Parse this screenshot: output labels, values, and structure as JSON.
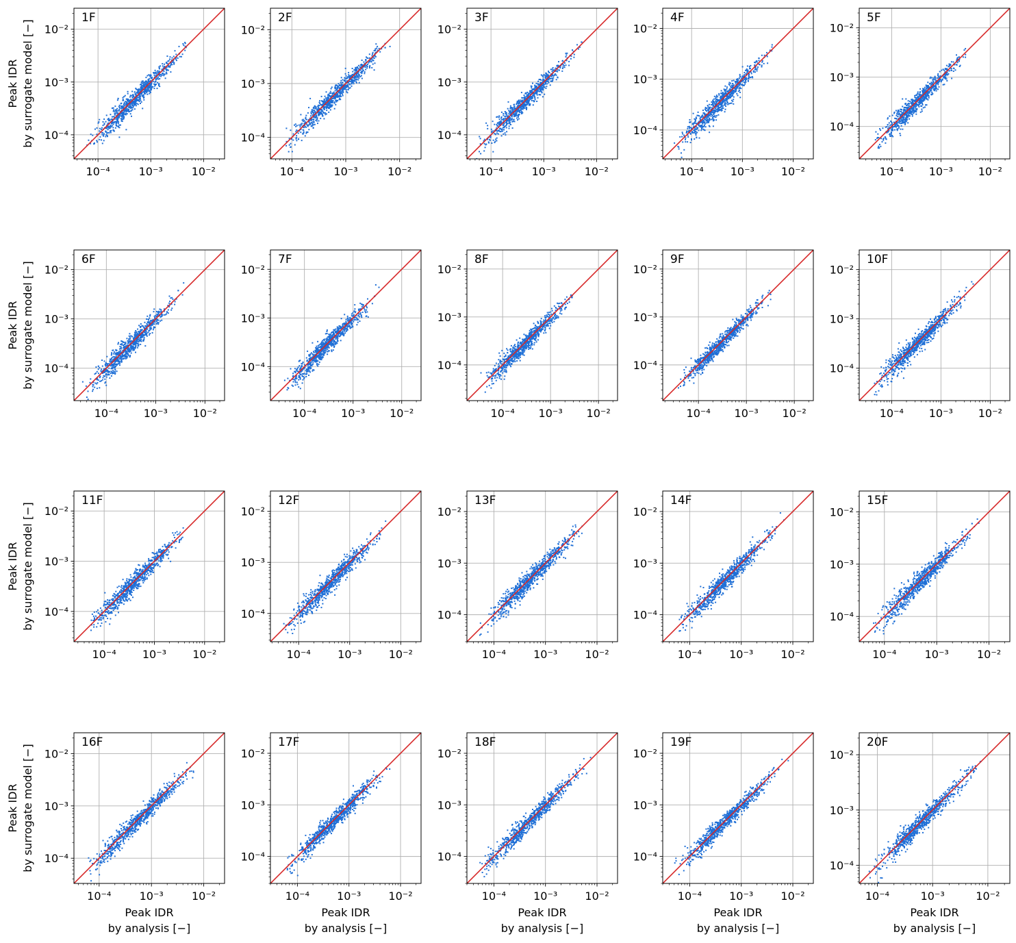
{
  "figure": {
    "ylabel_line1": "Peak IDR",
    "ylabel_line2": "by surrogate model [−]",
    "xlabel_line1": "Peak IDR",
    "xlabel_line2": "by analysis [−]",
    "tick_labels": [
      "10⁻⁴",
      "10⁻³",
      "10⁻²"
    ]
  },
  "colors": {
    "scatter": "#1f6fd6",
    "diagonal": "#d62728",
    "grid": "#b0b0b0"
  },
  "chart_data": [
    {
      "type": "scatter",
      "label": "1F",
      "xscale": "log",
      "yscale": "log",
      "xlim": [
        3.5e-05,
        0.025
      ],
      "ylim": [
        3.5e-05,
        0.025
      ],
      "grid": true,
      "diagonal": "y = x",
      "x_range": [
        5e-05,
        0.0085
      ],
      "scatter_spread": 0.09
    },
    {
      "type": "scatter",
      "label": "2F",
      "xscale": "log",
      "yscale": "log",
      "xlim": [
        4e-05,
        0.025
      ],
      "ylim": [
        4e-05,
        0.025
      ],
      "grid": true,
      "diagonal": "y = x",
      "x_range": [
        6e-05,
        0.0105
      ],
      "scatter_spread": 0.08
    },
    {
      "type": "scatter",
      "label": "3F",
      "xscale": "log",
      "yscale": "log",
      "xlim": [
        3.5e-05,
        0.025
      ],
      "ylim": [
        3.5e-05,
        0.025
      ],
      "grid": true,
      "diagonal": "y = x",
      "x_range": [
        4.5e-05,
        0.0075
      ],
      "scatter_spread": 0.08
    },
    {
      "type": "scatter",
      "label": "4F",
      "xscale": "log",
      "yscale": "log",
      "xlim": [
        2.7e-05,
        0.025
      ],
      "ylim": [
        2.7e-05,
        0.025
      ],
      "grid": true,
      "diagonal": "y = x",
      "x_range": [
        4e-05,
        0.0065
      ],
      "scatter_spread": 0.09
    },
    {
      "type": "scatter",
      "label": "5F",
      "xscale": "log",
      "yscale": "log",
      "xlim": [
        2.2e-05,
        0.025
      ],
      "ylim": [
        2.2e-05,
        0.025
      ],
      "grid": true,
      "diagonal": "y = x",
      "x_range": [
        3.5e-05,
        0.0055
      ],
      "scatter_spread": 0.09
    },
    {
      "type": "scatter",
      "label": "6F",
      "xscale": "log",
      "yscale": "log",
      "xlim": [
        2.2e-05,
        0.025
      ],
      "ylim": [
        2.2e-05,
        0.025
      ],
      "grid": true,
      "diagonal": "y = x",
      "x_range": [
        3e-05,
        0.005
      ],
      "scatter_spread": 0.09
    },
    {
      "type": "scatter",
      "label": "7F",
      "xscale": "log",
      "yscale": "log",
      "xlim": [
        2e-05,
        0.025
      ],
      "ylim": [
        2e-05,
        0.025
      ],
      "grid": true,
      "diagonal": "y = x",
      "x_range": [
        3e-05,
        0.0047
      ],
      "scatter_spread": 0.09
    },
    {
      "type": "scatter",
      "label": "8F",
      "xscale": "log",
      "yscale": "log",
      "xlim": [
        1.8e-05,
        0.025
      ],
      "ylim": [
        1.8e-05,
        0.025
      ],
      "grid": true,
      "diagonal": "y = x",
      "x_range": [
        3e-05,
        0.0045
      ],
      "scatter_spread": 0.09
    },
    {
      "type": "scatter",
      "label": "9F",
      "xscale": "log",
      "yscale": "log",
      "xlim": [
        1.8e-05,
        0.025
      ],
      "ylim": [
        1.8e-05,
        0.025
      ],
      "grid": true,
      "diagonal": "y = x",
      "x_range": [
        3e-05,
        0.0052
      ],
      "scatter_spread": 0.08
    },
    {
      "type": "scatter",
      "label": "10F",
      "xscale": "log",
      "yscale": "log",
      "xlim": [
        2.2e-05,
        0.025
      ],
      "ylim": [
        2.2e-05,
        0.025
      ],
      "grid": true,
      "diagonal": "y = x",
      "x_range": [
        3.5e-05,
        0.0058
      ],
      "scatter_spread": 0.09
    },
    {
      "type": "scatter",
      "label": "11F",
      "xscale": "log",
      "yscale": "log",
      "xlim": [
        2.5e-05,
        0.025
      ],
      "ylim": [
        2.5e-05,
        0.025
      ],
      "grid": true,
      "diagonal": "y = x",
      "x_range": [
        4e-05,
        0.0065
      ],
      "scatter_spread": 0.09
    },
    {
      "type": "scatter",
      "label": "12F",
      "xscale": "log",
      "yscale": "log",
      "xlim": [
        2.8e-05,
        0.025
      ],
      "ylim": [
        2.8e-05,
        0.025
      ],
      "grid": true,
      "diagonal": "y = x",
      "x_range": [
        4e-05,
        0.0075
      ],
      "scatter_spread": 0.09
    },
    {
      "type": "scatter",
      "label": "13F",
      "xscale": "log",
      "yscale": "log",
      "xlim": [
        3e-05,
        0.025
      ],
      "ylim": [
        3e-05,
        0.025
      ],
      "grid": true,
      "diagonal": "y = x",
      "x_range": [
        4.5e-05,
        0.0085
      ],
      "scatter_spread": 0.09
    },
    {
      "type": "scatter",
      "label": "14F",
      "xscale": "log",
      "yscale": "log",
      "xlim": [
        3e-05,
        0.025
      ],
      "ylim": [
        3e-05,
        0.025
      ],
      "grid": true,
      "diagonal": "y = x",
      "x_range": [
        4.5e-05,
        0.0085
      ],
      "scatter_spread": 0.09
    },
    {
      "type": "scatter",
      "label": "15F",
      "xscale": "log",
      "yscale": "log",
      "xlim": [
        3.3e-05,
        0.025
      ],
      "ylim": [
        3.3e-05,
        0.025
      ],
      "grid": true,
      "diagonal": "y = x",
      "x_range": [
        5e-05,
        0.0085
      ],
      "scatter_spread": 0.09
    },
    {
      "type": "scatter",
      "label": "16F",
      "xscale": "log",
      "yscale": "log",
      "xlim": [
        3.3e-05,
        0.025
      ],
      "ylim": [
        3.3e-05,
        0.025
      ],
      "grid": true,
      "diagonal": "y = x",
      "x_range": [
        5e-05,
        0.0095
      ],
      "scatter_spread": 0.08
    },
    {
      "type": "scatter",
      "label": "17F",
      "xscale": "log",
      "yscale": "log",
      "xlim": [
        3e-05,
        0.025
      ],
      "ylim": [
        3e-05,
        0.025
      ],
      "grid": true,
      "diagonal": "y = x",
      "x_range": [
        4.5e-05,
        0.0095
      ],
      "scatter_spread": 0.08
    },
    {
      "type": "scatter",
      "label": "18F",
      "xscale": "log",
      "yscale": "log",
      "xlim": [
        3e-05,
        0.025
      ],
      "ylim": [
        3e-05,
        0.025
      ],
      "grid": true,
      "diagonal": "y = x",
      "x_range": [
        4.5e-05,
        0.0095
      ],
      "scatter_spread": 0.08
    },
    {
      "type": "scatter",
      "label": "19F",
      "xscale": "log",
      "yscale": "log",
      "xlim": [
        3e-05,
        0.025
      ],
      "ylim": [
        3e-05,
        0.025
      ],
      "grid": true,
      "diagonal": "y = x",
      "x_range": [
        4.5e-05,
        0.0095
      ],
      "scatter_spread": 0.08
    },
    {
      "type": "scatter",
      "label": "20F",
      "xscale": "log",
      "yscale": "log",
      "xlim": [
        4.7e-05,
        0.025
      ],
      "ylim": [
        4.7e-05,
        0.025
      ],
      "grid": true,
      "diagonal": "y = x",
      "x_range": [
        6e-05,
        0.0105
      ],
      "scatter_spread": 0.08
    }
  ]
}
